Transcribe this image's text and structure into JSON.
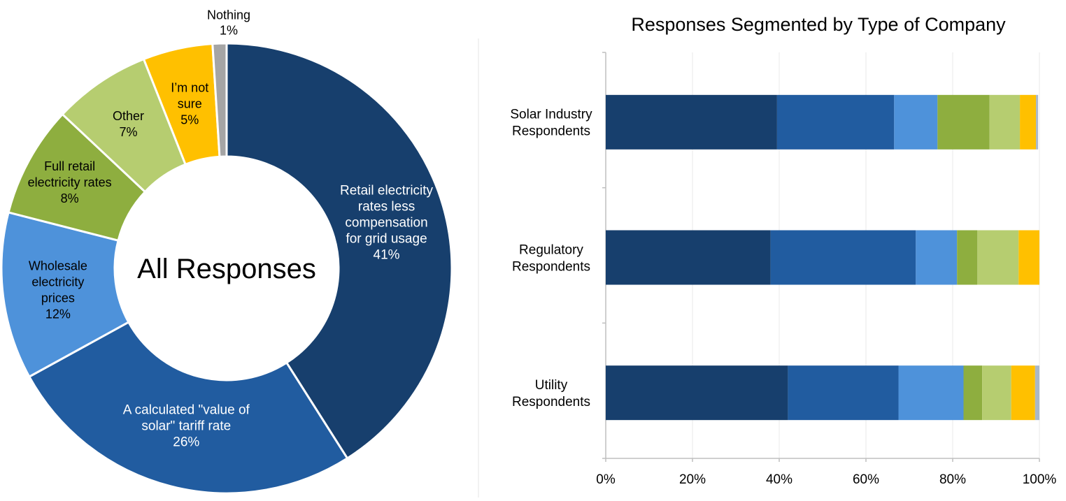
{
  "chart_data": [
    {
      "type": "pie",
      "donut": true,
      "title": "",
      "center_label": "All Responses",
      "unit": "%",
      "slices": [
        {
          "label": [
            "Retail electricity",
            "rates less",
            "compensation",
            "for grid usage"
          ],
          "value": 41,
          "value_label": "41%",
          "color": "#173F6D",
          "text_color": "#FFFFFF"
        },
        {
          "label": [
            "A calculated \"value of",
            "solar\" tariff rate"
          ],
          "value": 26,
          "value_label": "26%",
          "color": "#215CA0",
          "text_color": "#FFFFFF"
        },
        {
          "label": [
            "Wholesale",
            "electricity",
            "prices"
          ],
          "value": 12,
          "value_label": "12%",
          "color": "#4E92DA",
          "text_color": "#000000"
        },
        {
          "label": [
            "Full retail",
            "electricity rates"
          ],
          "value": 8,
          "value_label": "8%",
          "color": "#8EAE3F",
          "text_color": "#000000"
        },
        {
          "label": [
            "Other"
          ],
          "value": 7,
          "value_label": "7%",
          "color": "#B6CD70",
          "text_color": "#000000"
        },
        {
          "label": [
            "I’m not",
            "sure"
          ],
          "value": 5,
          "value_label": "5%",
          "color": "#FFC000",
          "text_color": "#000000"
        },
        {
          "label": [
            "Nothing"
          ],
          "value": 1,
          "value_label": "1%",
          "color": "#A5A5A5",
          "text_color": "#000000"
        }
      ]
    },
    {
      "type": "bar",
      "orientation": "horizontal",
      "stacked": true,
      "title": "Responses Segmented by Type of Company",
      "categories": [
        [
          "Solar Industry",
          "Respondents"
        ],
        [
          "Regulatory",
          "Respondents"
        ],
        [
          "Utility",
          "Respondents"
        ]
      ],
      "xlim": [
        0,
        100
      ],
      "x_ticks": [
        "0%",
        "20%",
        "40%",
        "60%",
        "80%",
        "100%"
      ],
      "gridlines": true,
      "series": [
        {
          "values": [
            39.5,
            38,
            42
          ],
          "color": "#173F6D"
        },
        {
          "values": [
            27,
            33.5,
            25.5
          ],
          "color": "#215CA0"
        },
        {
          "values": [
            10,
            9.5,
            15
          ],
          "color": "#4E92DA"
        },
        {
          "values": [
            12,
            4.7,
            4.3
          ],
          "color": "#8EAE3F"
        },
        {
          "values": [
            7,
            9.5,
            6.7
          ],
          "color": "#B6CD70"
        },
        {
          "values": [
            3.7,
            4.8,
            5.5
          ],
          "color": "#FFC000"
        },
        {
          "values": [
            0.5,
            0,
            1
          ],
          "color": "#A9B8C8"
        }
      ]
    }
  ]
}
